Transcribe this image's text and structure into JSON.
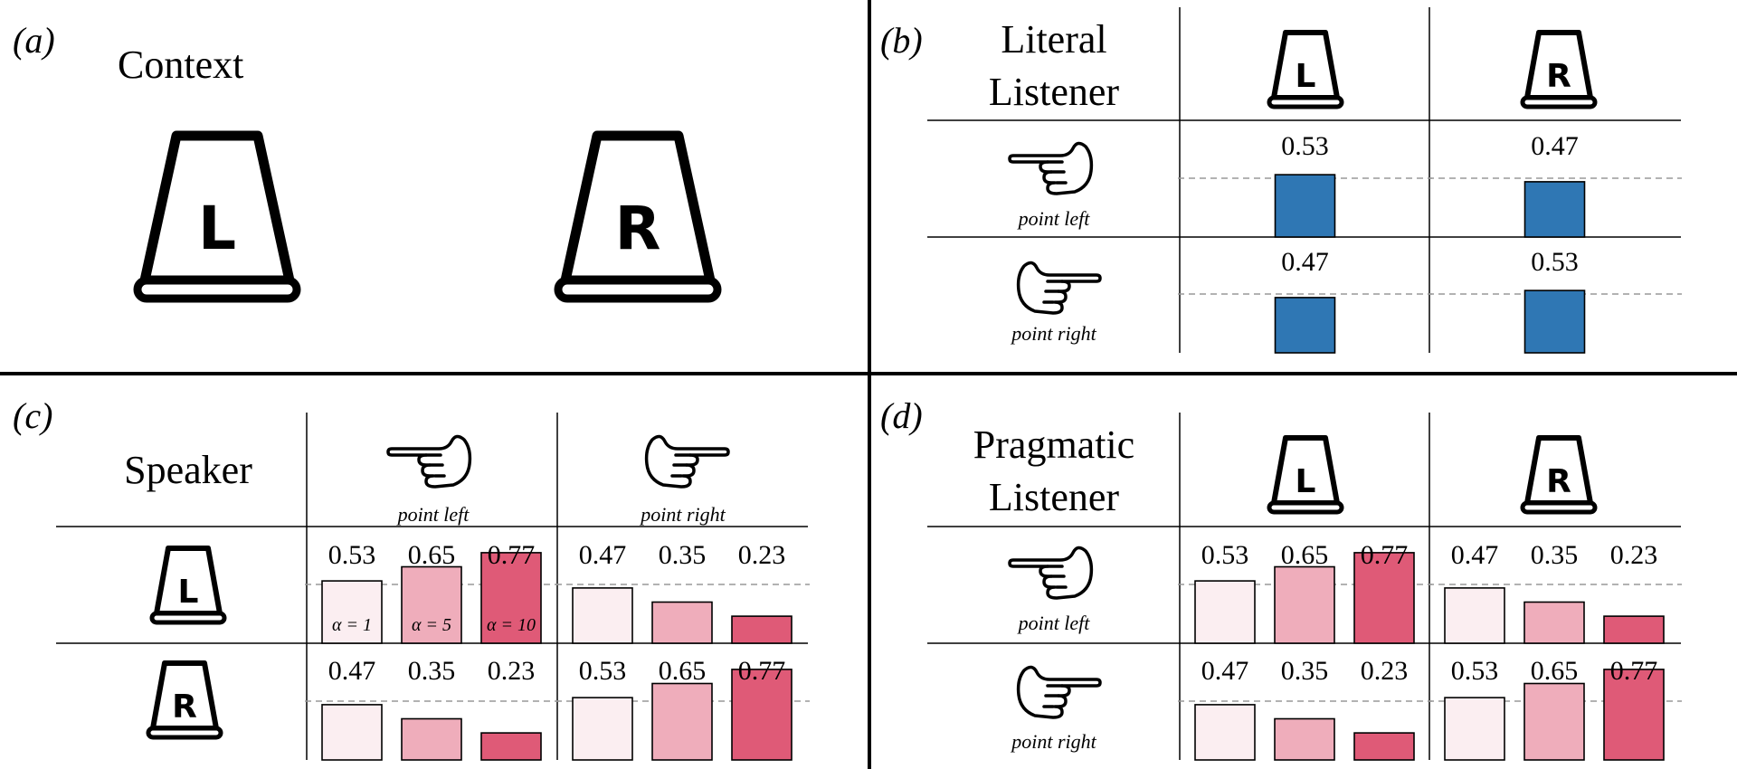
{
  "panels": {
    "a": {
      "label": "(a)",
      "title": "Context"
    },
    "b": {
      "label": "(b)",
      "title_line1": "Literal",
      "title_line2": "Listener"
    },
    "c": {
      "label": "(c)",
      "title": "Speaker"
    },
    "d": {
      "label": "(d)",
      "title_line1": "Pragmatic",
      "title_line2": "Listener"
    }
  },
  "cups": {
    "left": "L",
    "right": "R"
  },
  "gestures": {
    "left_caption": "point left",
    "right_caption": "point right"
  },
  "alpha_labels": [
    "α = 1",
    "α = 5",
    "α = 10"
  ],
  "colors": {
    "literal_bar": "#2f77b4",
    "alpha_1": "#fbeef1",
    "alpha_5": "#efadbb",
    "alpha_10": "#df5a77",
    "dashed_line": "#999999"
  },
  "chart_data": [
    {
      "type": "bar",
      "panel": "b",
      "rows": [
        "point left",
        "point right"
      ],
      "columns": [
        "L",
        "R"
      ],
      "values": [
        [
          0.53,
          0.47
        ],
        [
          0.47,
          0.53
        ]
      ],
      "reference_line": 0.5
    },
    {
      "type": "bar",
      "panel": "c",
      "rows": [
        "L",
        "R"
      ],
      "columns": [
        "point left",
        "point right"
      ],
      "series": [
        "α = 1",
        "α = 5",
        "α = 10"
      ],
      "values": [
        [
          [
            0.53,
            0.65,
            0.77
          ],
          [
            0.47,
            0.35,
            0.23
          ]
        ],
        [
          [
            0.47,
            0.35,
            0.23
          ],
          [
            0.53,
            0.65,
            0.77
          ]
        ]
      ],
      "reference_line": 0.5
    },
    {
      "type": "bar",
      "panel": "d",
      "rows": [
        "point left",
        "point right"
      ],
      "columns": [
        "L",
        "R"
      ],
      "series": [
        "α = 1",
        "α = 5",
        "α = 10"
      ],
      "values": [
        [
          [
            0.53,
            0.65,
            0.77
          ],
          [
            0.47,
            0.35,
            0.23
          ]
        ],
        [
          [
            0.47,
            0.35,
            0.23
          ],
          [
            0.53,
            0.65,
            0.77
          ]
        ]
      ],
      "reference_line": 0.5
    }
  ]
}
